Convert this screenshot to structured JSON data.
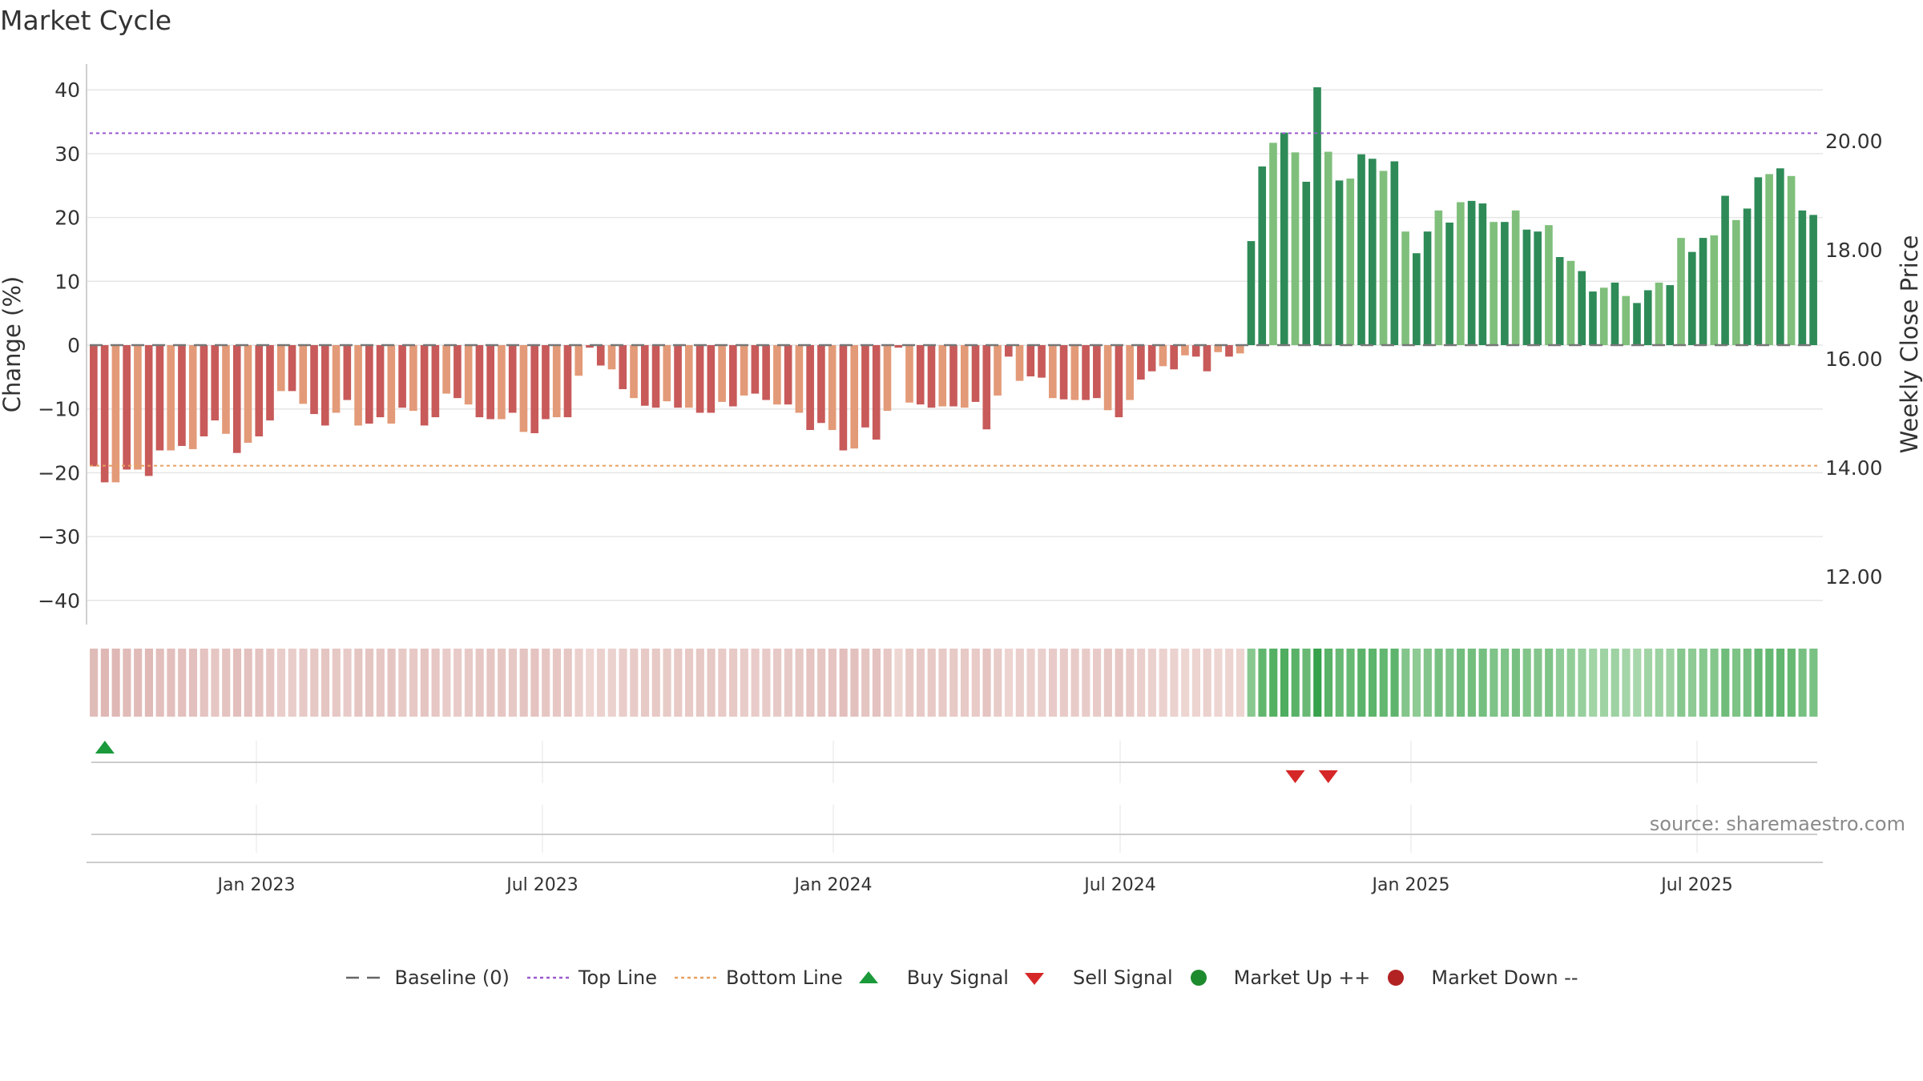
{
  "title": "Market Cycle",
  "source": "source: sharemaestro.com",
  "legend": [
    {
      "label": "Baseline (0)",
      "icon": "dash-line-icon",
      "color": "#666666"
    },
    {
      "label": "Top Line",
      "icon": "dotted-line-icon",
      "color": "#9b59d0"
    },
    {
      "label": "Bottom Line",
      "icon": "dotted-line-icon",
      "color": "#e8a060"
    },
    {
      "label": "Buy Signal",
      "icon": "triangle-up-icon",
      "color": "#1a9a3a"
    },
    {
      "label": "Sell Signal",
      "icon": "triangle-down-icon",
      "color": "#d62728"
    },
    {
      "label": "Market Up ++",
      "icon": "circle-icon",
      "color": "#1e8a2e"
    },
    {
      "label": "Market Down --",
      "icon": "circle-icon",
      "color": "#b22222"
    }
  ],
  "chart_data": {
    "type": "bar",
    "ylabel": "Change (%)",
    "y2label": "Weekly Close Price",
    "ylim": [
      -44,
      44
    ],
    "yticks": [
      40,
      30,
      20,
      10,
      0,
      -10,
      -20,
      -30,
      -40
    ],
    "y2ticks": [
      "20.00",
      "18.00",
      "16.00",
      "14.00",
      "12.00"
    ],
    "top_line": 33.2,
    "bottom_line": -18.9,
    "xticks": [
      "Jan 2023",
      "Jul 2023",
      "Jan 2024",
      "Jul 2024",
      "Jan 2025",
      "Jul 2025"
    ],
    "values": [
      -19,
      -21.5,
      -21.5,
      -19.5,
      -19.5,
      -20.5,
      -16.5,
      -16.5,
      -15.8,
      -16.3,
      -14.3,
      -11.8,
      -13.9,
      -16.9,
      -15.3,
      -14.3,
      -11.8,
      -7.2,
      -7.2,
      -9.2,
      -10.8,
      -12.6,
      -10.6,
      -8.6,
      -12.6,
      -12.3,
      -11.3,
      -12.3,
      -9.8,
      -10.3,
      -12.6,
      -11.3,
      -7.6,
      -8.3,
      -9.3,
      -11.3,
      -11.6,
      -11.6,
      -10.6,
      -13.6,
      -13.8,
      -11.6,
      -11.3,
      -11.3,
      -4.8,
      -0.4,
      -3.2,
      -3.8,
      -6.9,
      -8.3,
      -9.5,
      -9.8,
      -8.8,
      -9.8,
      -9.8,
      -10.6,
      -10.6,
      -8.9,
      -9.6,
      -7.9,
      -7.6,
      -8.6,
      -9.3,
      -9.3,
      -10.6,
      -13.3,
      -12.2,
      -13.3,
      -16.5,
      -16.2,
      -12.9,
      -14.8,
      -10.3,
      -0.4,
      -9.0,
      -9.3,
      -9.8,
      -9.6,
      -9.6,
      -9.8,
      -8.9,
      -13.2,
      -7.9,
      -1.8,
      -5.6,
      -4.9,
      -5.1,
      -8.3,
      -8.5,
      -8.6,
      -8.6,
      -8.3,
      -10.2,
      -11.3,
      -8.6,
      -5.4,
      -4.1,
      -3.3,
      -3.8,
      -1.6,
      -1.8,
      -4.1,
      -1.1,
      -1.8,
      -1.3,
      16.3,
      28.0,
      31.7,
      33.3,
      30.2,
      25.6,
      40.4,
      30.3,
      25.8,
      26.1,
      29.9,
      29.2,
      27.3,
      28.8,
      17.8,
      14.4,
      17.8,
      21.1,
      19.2,
      22.4,
      22.6,
      22.2,
      19.3,
      19.3,
      21.1,
      18.1,
      17.8,
      18.8,
      13.8,
      13.2,
      11.6,
      8.4,
      9.0,
      9.8,
      7.7,
      6.6,
      8.6,
      9.8,
      9.4,
      16.8,
      14.6,
      16.8,
      17.2,
      23.4,
      19.6,
      21.4,
      26.3,
      26.8,
      27.7,
      26.5,
      21.1,
      20.4
    ],
    "buy_signals": [
      0
    ],
    "sell_signals": [
      109,
      112
    ]
  }
}
